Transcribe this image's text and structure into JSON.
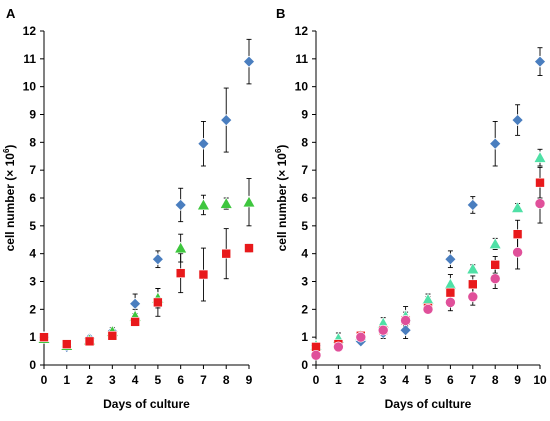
{
  "chart_data": [
    {
      "type": "scatter",
      "panel": "A",
      "xlabel": "Days of culture",
      "ylabel": "cell number (× 10",
      "ylabel_exp": "6",
      "ylabel_close": ")",
      "xlim": [
        0,
        9
      ],
      "ylim": [
        0,
        12
      ],
      "xticks": [
        0,
        1,
        2,
        3,
        4,
        5,
        6,
        7,
        8,
        9
      ],
      "yticks": [
        0,
        1,
        2,
        3,
        4,
        5,
        6,
        7,
        8,
        9,
        10,
        11,
        12
      ],
      "grid": false,
      "error_bars": true,
      "series": [
        {
          "marker": "diamond",
          "color": "#4a7ebf",
          "x": [
            0,
            1,
            2,
            3,
            4,
            5,
            6,
            7,
            8,
            9
          ],
          "y": [
            1.0,
            0.65,
            0.95,
            1.2,
            2.2,
            3.8,
            5.75,
            7.95,
            8.8,
            10.9
          ],
          "err": [
            0.08,
            0.08,
            0.1,
            0.15,
            0.35,
            0.3,
            0.6,
            0.8,
            1.15,
            0.8
          ]
        },
        {
          "marker": "triangle",
          "color": "#3ec63e",
          "x": [
            0,
            1,
            2,
            3,
            4,
            5,
            6,
            7,
            8,
            9
          ],
          "y": [
            0.95,
            0.7,
            0.9,
            1.2,
            1.75,
            2.4,
            4.2,
            5.75,
            5.8,
            5.85
          ],
          "err": [
            0.08,
            0.08,
            0.1,
            0.1,
            0.25,
            0.35,
            0.5,
            0.35,
            0.2,
            0.85
          ]
        },
        {
          "marker": "square",
          "color": "#e8191b",
          "x": [
            0,
            1,
            2,
            3,
            4,
            5,
            6,
            7,
            8,
            9
          ],
          "y": [
            1.0,
            0.75,
            0.85,
            1.05,
            1.55,
            2.25,
            3.3,
            3.25,
            4.0,
            4.2
          ],
          "err": [
            0.08,
            0.08,
            0.1,
            0.1,
            0.15,
            0.5,
            0.7,
            0.95,
            0.9,
            0.15
          ]
        }
      ]
    },
    {
      "type": "scatter",
      "panel": "B",
      "xlabel": "Days of culture",
      "ylabel": "cell number (× 10",
      "ylabel_exp": "6",
      "ylabel_close": ")",
      "xlim": [
        0,
        10
      ],
      "ylim": [
        0,
        12
      ],
      "xticks": [
        0,
        1,
        2,
        3,
        4,
        5,
        6,
        7,
        8,
        9,
        10
      ],
      "yticks": [
        0,
        1,
        2,
        3,
        4,
        5,
        6,
        7,
        8,
        9,
        10,
        11,
        12
      ],
      "grid": false,
      "error_bars": true,
      "series": [
        {
          "marker": "diamond",
          "color": "#4a7ebf",
          "x": [
            0,
            1,
            2,
            3,
            4,
            5,
            6,
            7,
            8,
            9,
            10
          ],
          "y": [
            0.7,
            0.8,
            0.85,
            1.15,
            1.25,
            2.25,
            3.8,
            5.75,
            7.95,
            8.8,
            10.9
          ],
          "err": [
            0.1,
            0.2,
            0.1,
            0.2,
            0.3,
            0.2,
            0.3,
            0.3,
            0.8,
            0.55,
            0.5
          ]
        },
        {
          "marker": "triangle",
          "color": "#4fe0a6",
          "x": [
            0,
            1,
            2,
            3,
            4,
            5,
            6,
            7,
            8,
            9,
            10
          ],
          "y": [
            0.7,
            0.95,
            1.05,
            1.5,
            1.75,
            2.35,
            2.9,
            3.45,
            4.35,
            5.65,
            7.45
          ],
          "err": [
            0.1,
            0.2,
            0.1,
            0.2,
            0.35,
            0.2,
            0.35,
            0.15,
            0.2,
            0.15,
            0.3
          ]
        },
        {
          "marker": "square",
          "color": "#e8191b",
          "x": [
            0,
            1,
            2,
            3,
            4,
            5,
            6,
            7,
            8,
            9,
            10
          ],
          "y": [
            0.65,
            0.75,
            1.05,
            1.25,
            1.6,
            2.05,
            2.6,
            2.9,
            3.6,
            4.7,
            6.55
          ],
          "err": [
            0.1,
            0.15,
            0.1,
            0.15,
            0.3,
            0.15,
            0.35,
            0.3,
            0.3,
            0.5,
            0.55
          ]
        },
        {
          "marker": "circle",
          "color": "#e0509a",
          "x": [
            0,
            1,
            2,
            3,
            4,
            5,
            6,
            7,
            8,
            9,
            10
          ],
          "y": [
            0.35,
            0.65,
            1.0,
            1.25,
            1.6,
            2.0,
            2.25,
            2.45,
            3.1,
            4.05,
            5.8
          ],
          "err": [
            0.1,
            0.1,
            0.1,
            0.15,
            0.2,
            0.15,
            0.3,
            0.3,
            0.35,
            0.6,
            0.7
          ]
        }
      ]
    }
  ]
}
